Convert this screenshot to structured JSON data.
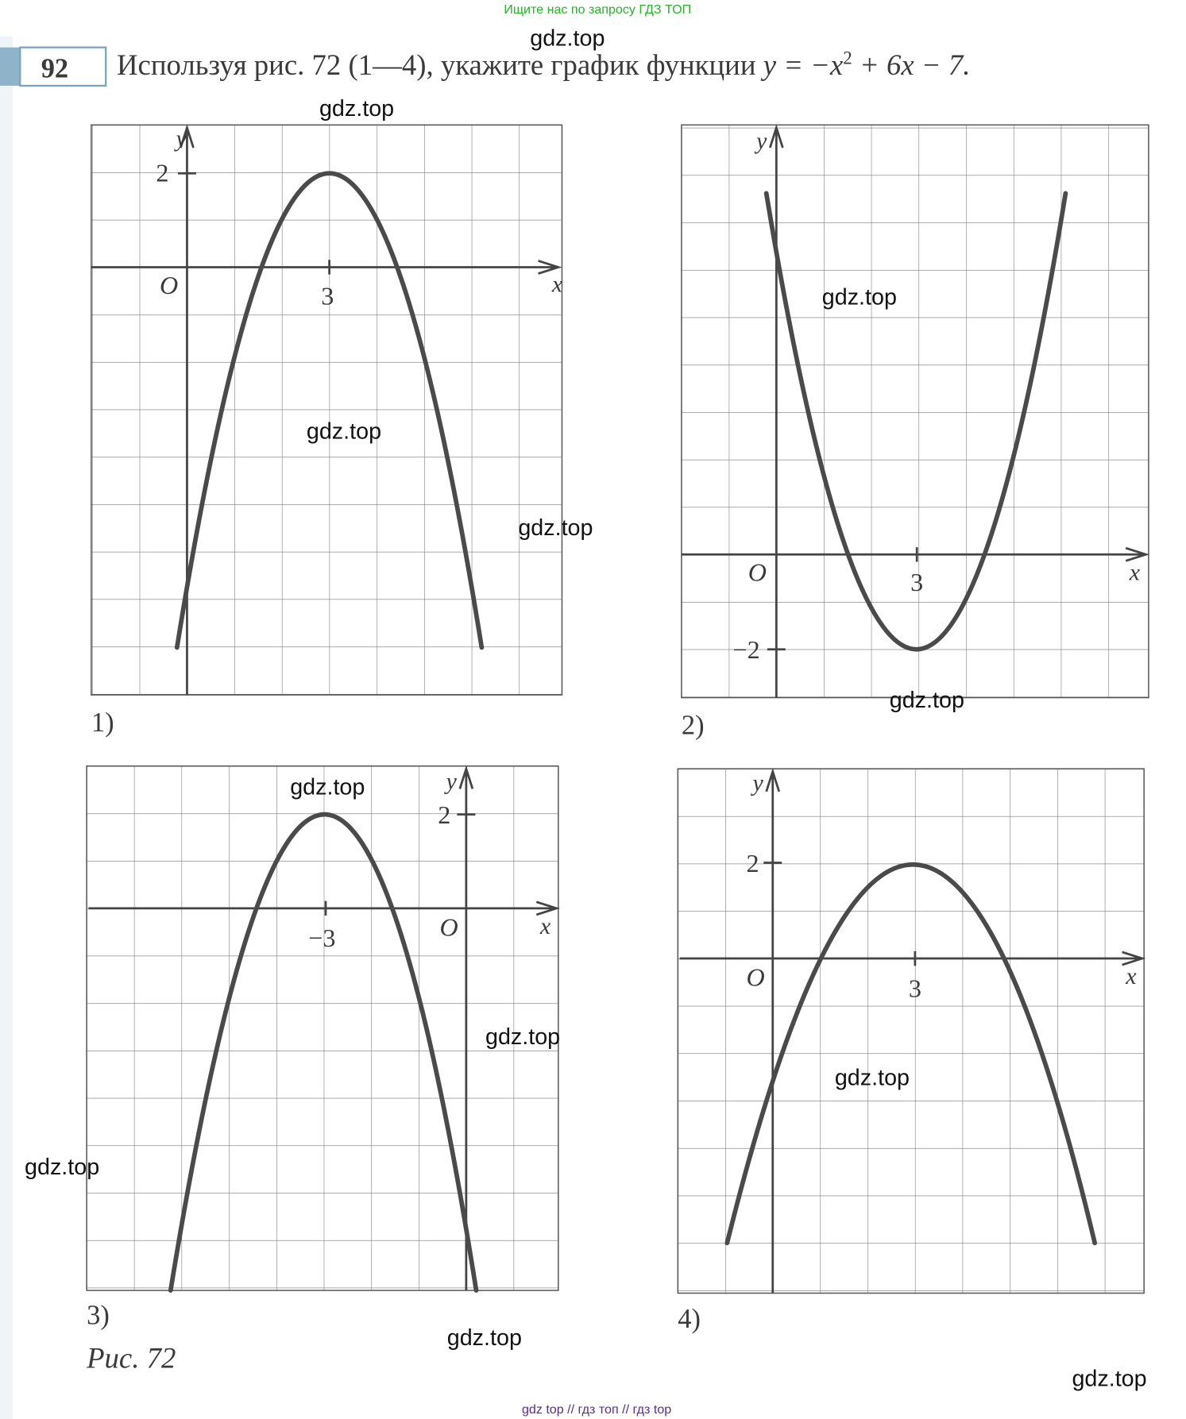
{
  "header": {
    "banner": "Ищите нас по запросу ГДЗ ТОП",
    "number": "92",
    "text_main": "Используя рис. 72 (1—4), укажите график функции ",
    "formula": "y = −x",
    "exponent": "2",
    "formula_end": " + 6x − 7."
  },
  "figures": [
    {
      "label": "1)",
      "y_axis": "y",
      "x_axis": "x",
      "origin": "O",
      "y_tick": "2",
      "x_tick": "3"
    },
    {
      "label": "2)",
      "y_axis": "y",
      "x_axis": "x",
      "origin": "O",
      "y_tick": "−2",
      "x_tick": "3"
    },
    {
      "label": "3)",
      "y_axis": "y",
      "x_axis": "x",
      "origin": "O",
      "y_tick": "2",
      "x_tick": "−3"
    },
    {
      "label": "4)",
      "y_axis": "y",
      "x_axis": "x",
      "origin": "O",
      "y_tick": "2",
      "x_tick": "3"
    }
  ],
  "caption": "Рис. 72",
  "watermarks": [
    "gdz.top",
    "gdz.top",
    "gdz.top",
    "gdz.top",
    "gdz.top",
    "gdz.top",
    "gdz.top",
    "gdz.top",
    "gdz.top",
    "gdz.top",
    "gdz.top",
    "gdz.top"
  ],
  "footer": "gdz top // гдз топ // гдз top"
}
